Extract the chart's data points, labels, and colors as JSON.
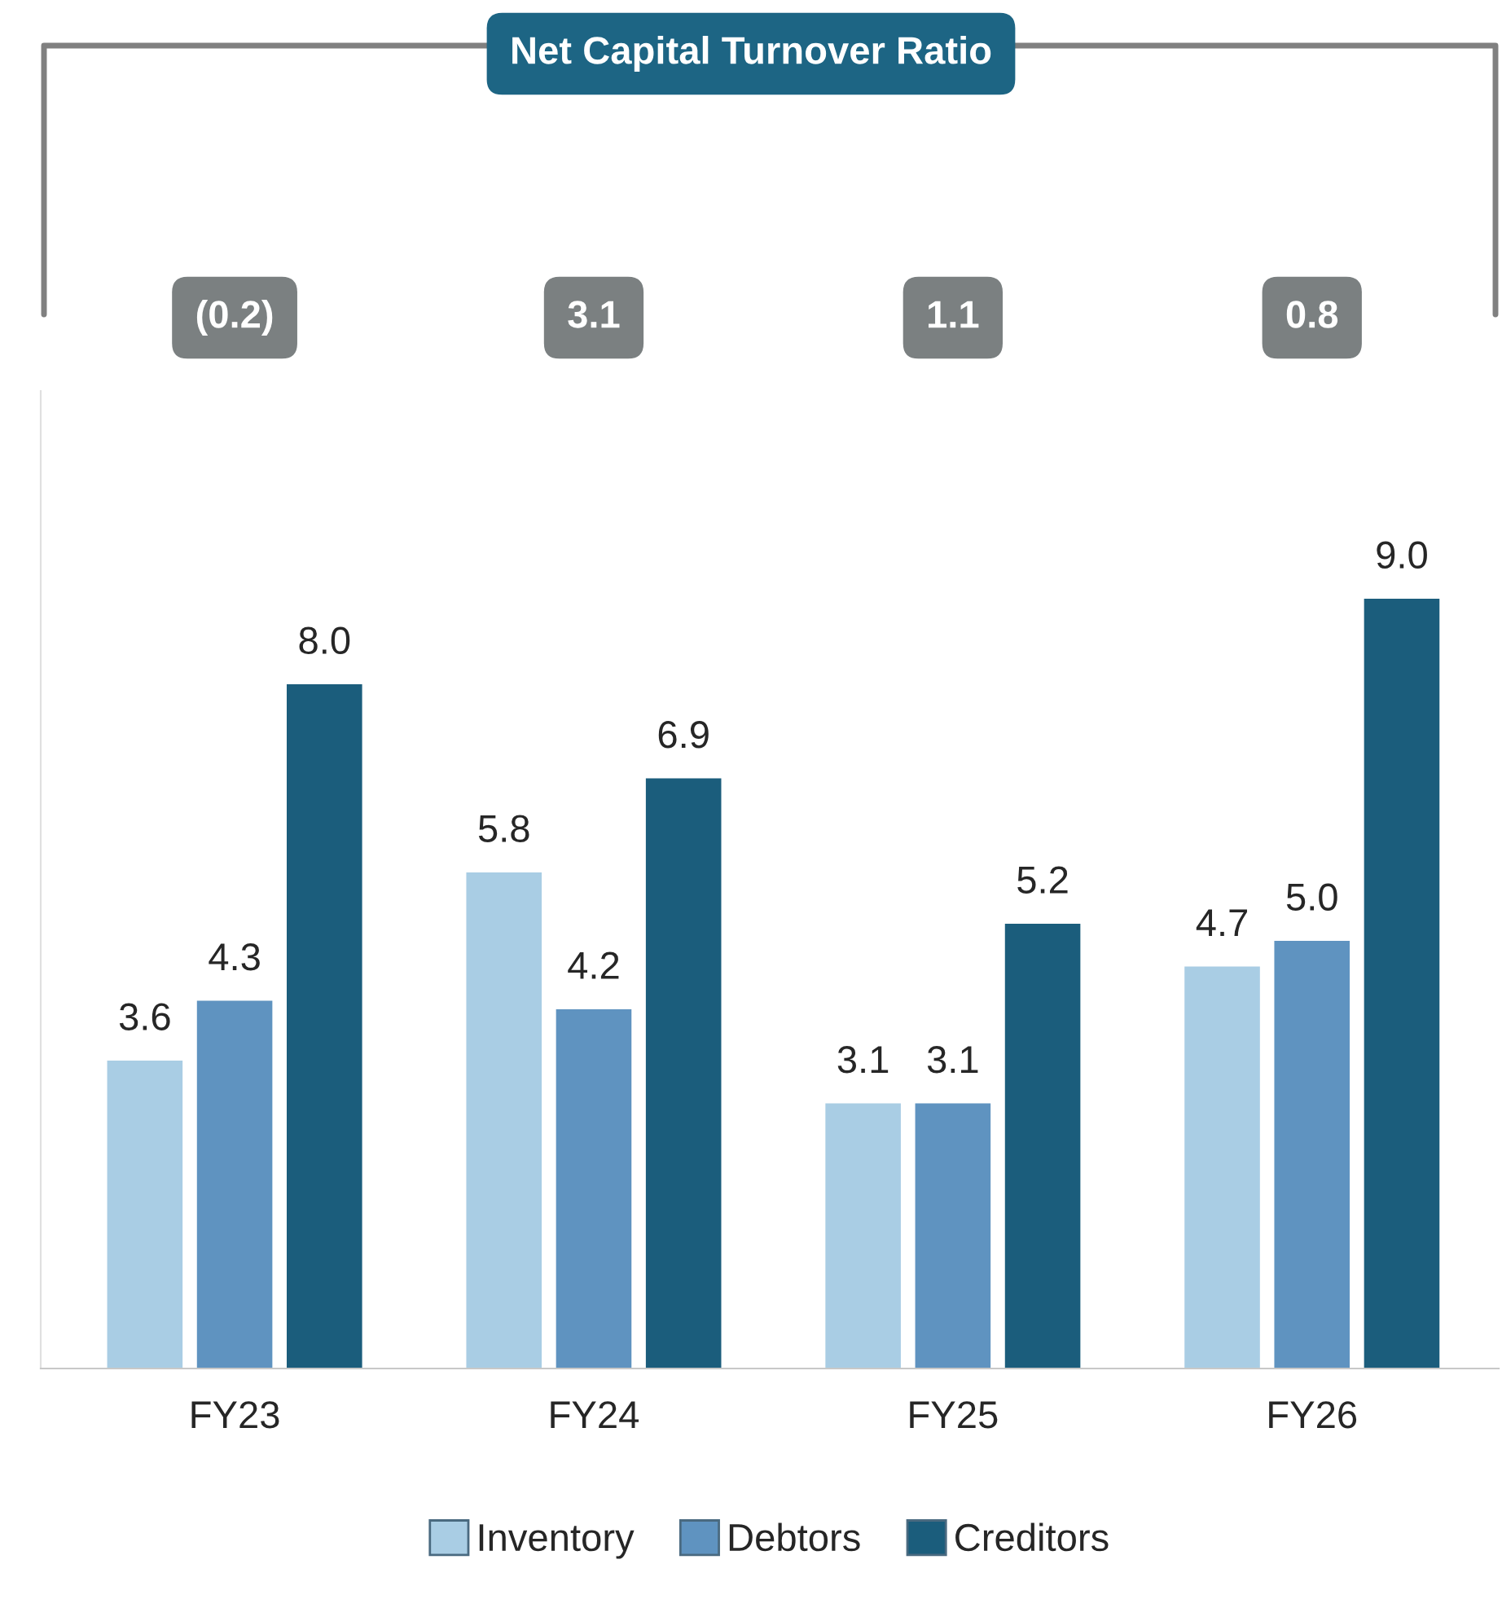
{
  "chart_data": {
    "type": "bar",
    "title": "Net Capital Turnover Ratio",
    "annotations": [
      "(0.2)",
      "3.1",
      "1.1",
      "0.8"
    ],
    "categories": [
      "FY23",
      "FY24",
      "FY25",
      "FY26"
    ],
    "series": [
      {
        "name": "Inventory",
        "color": "#a9cde4",
        "values": [
          3.6,
          5.8,
          3.1,
          4.7
        ],
        "value_labels": [
          "3.6",
          "5.8",
          "3.1",
          "4.7"
        ]
      },
      {
        "name": "Debtors",
        "color": "#5f93c0",
        "values": [
          4.3,
          4.2,
          3.1,
          5.0
        ],
        "value_labels": [
          "4.3",
          "4.2",
          "3.1",
          "5.0"
        ]
      },
      {
        "name": "Creditors",
        "color": "#1b5d7c",
        "values": [
          8.0,
          6.9,
          5.2,
          9.0
        ],
        "value_labels": [
          "8.0",
          "6.9",
          "5.2",
          "9.0"
        ]
      }
    ],
    "grid": false,
    "legend": "bottom"
  }
}
